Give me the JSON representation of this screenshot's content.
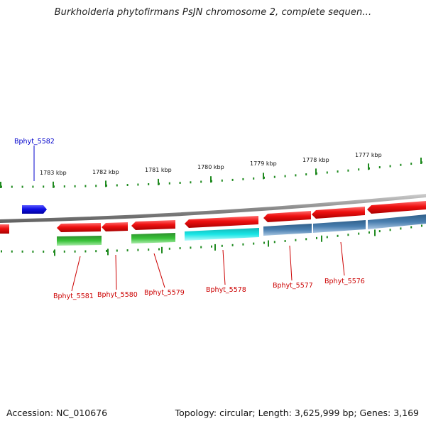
{
  "title": "Burkholderia phytofirmans PsJN chromosome 2, complete sequen…",
  "footer": {
    "accession": "Accession: NC_010676",
    "summary": "Topology: circular; Length: 3,625,999 bp; Genes: 3,169"
  },
  "scale_ticks": [
    "1783 kbp",
    "1782 kbp",
    "1781 kbp",
    "1780 kbp",
    "1779 kbp",
    "1778 kbp",
    "1777 kbp"
  ],
  "genes": [
    {
      "label": "Bphyt_5582",
      "color": "#0000cc",
      "strand": "forward"
    },
    {
      "label": "Bphyt_5581",
      "color": "#cc0000"
    },
    {
      "label": "Bphyt_5580",
      "color": "#cc0000"
    },
    {
      "label": "Bphyt_5579",
      "color": "#cc0000"
    },
    {
      "label": "Bphyt_5578",
      "color": "#cc0000"
    },
    {
      "label": "Bphyt_5577",
      "color": "#cc0000"
    },
    {
      "label": "Bphyt_5576",
      "color": "#cc0000"
    }
  ],
  "colors": {
    "backbone": "#8a8a8a",
    "tick": "#1f8a1f",
    "cds_reverse": "#e81010",
    "cds_forward": "#1010e0",
    "rna_green": "#33bb33",
    "rna_cyan": "#19e6e6",
    "rna_steel": "#4a7fb0"
  }
}
